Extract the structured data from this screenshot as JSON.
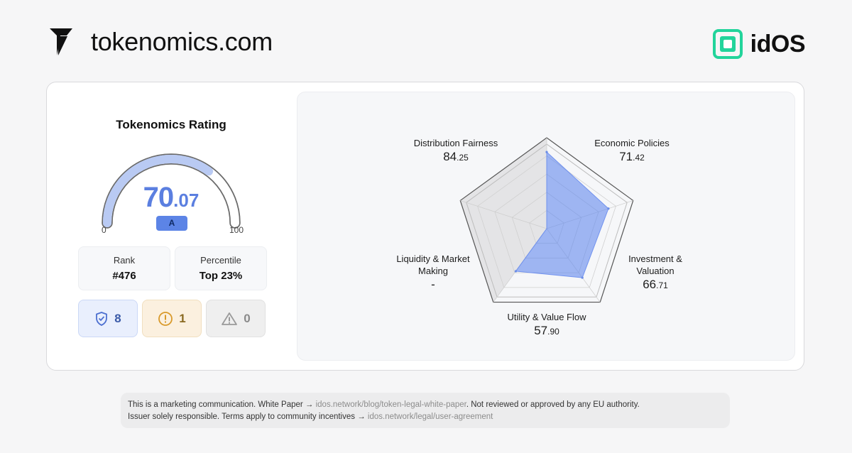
{
  "header": {
    "brand_name": "tokenomics.com",
    "partner_name": "idOS",
    "colors": {
      "accent": "#5b7fe0",
      "partner_green": "#22d49b"
    }
  },
  "rating": {
    "title": "Tokenomics Rating",
    "score_int": "70",
    "score_dec": ".07",
    "score_value": 70.07,
    "grade": "A",
    "gauge_min": "0",
    "gauge_max": "100"
  },
  "stats": {
    "rank_label": "Rank",
    "rank_value": "#476",
    "percentile_label": "Percentile",
    "percentile_value": "Top 23%"
  },
  "flags": {
    "pass_count": "8",
    "warning_count": "1",
    "alert_count": "0",
    "icons": [
      "shield-check-icon",
      "warning-circle-icon",
      "alert-triangle-icon"
    ]
  },
  "radar": {
    "axes": [
      {
        "name": "Distribution Fairness",
        "int": "84",
        "dec": ".25",
        "value": 84.25
      },
      {
        "name": "Economic Policies",
        "int": "71",
        "dec": ".42",
        "value": 71.42
      },
      {
        "name": "Investment & Valuation",
        "int": "66",
        "dec": ".71",
        "value": 66.71
      },
      {
        "name": "Utility & Value Flow",
        "int": "57",
        "dec": ".90",
        "value": 57.9
      },
      {
        "name": "Liquidity & Market Making",
        "int": "-",
        "dec": "",
        "value": null
      }
    ]
  },
  "footer": {
    "text1": "This is a marketing communication. White Paper → ",
    "link1": "idos.network/blog/token-legal-white-paper",
    "text2": ". Not reviewed or approved by any EU authority.",
    "text3": "Issuer solely responsible. Terms apply to community incentives → ",
    "link2": "idos.network/legal/user-agreement"
  }
}
